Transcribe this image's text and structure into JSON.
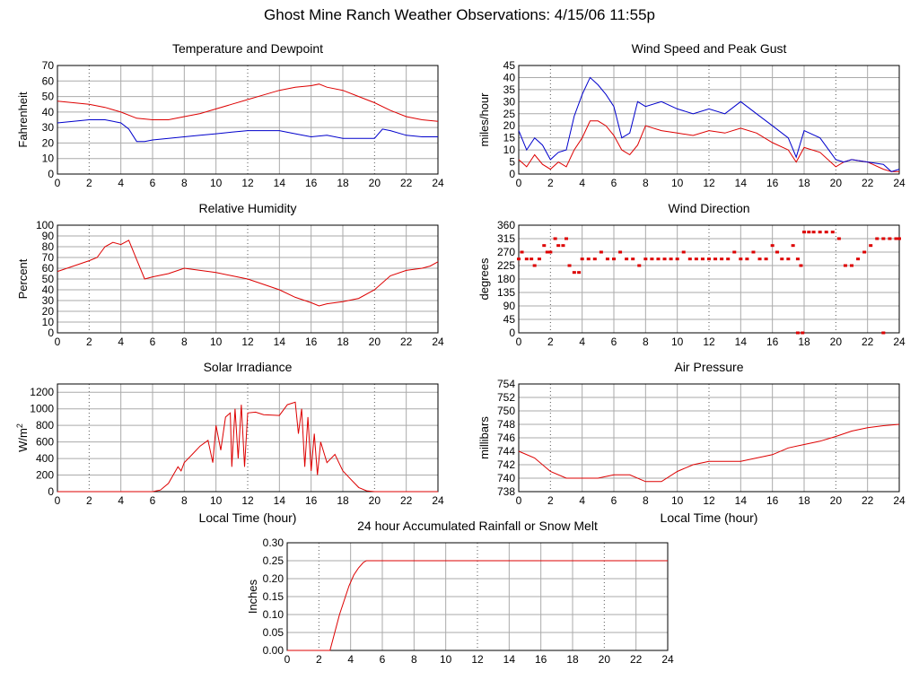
{
  "page_title": "Ghost Mine Ranch Weather Observations: 4/15/06 11:55p",
  "colors": {
    "red": "#dd0000",
    "blue": "#0000cc",
    "grid": "#aaaaaa",
    "axis": "#000000"
  },
  "chart_data": [
    {
      "id": "temperature",
      "type": "line",
      "title": "Temperature and Dewpoint",
      "ylabel": "Fahrenheit",
      "xlabel": "",
      "xlim": [
        0,
        24
      ],
      "ylim": [
        0,
        70
      ],
      "xticks": [
        0,
        2,
        4,
        6,
        8,
        10,
        12,
        14,
        16,
        18,
        20,
        22,
        24
      ],
      "yticks": [
        0,
        10,
        20,
        30,
        40,
        50,
        60,
        70
      ],
      "grid": true,
      "series": [
        {
          "color": "#dd0000",
          "x": [
            0,
            1,
            2,
            3,
            4,
            5,
            6,
            7,
            8,
            9,
            10,
            11,
            12,
            13,
            14,
            15,
            16,
            16.5,
            17,
            18,
            19,
            20,
            21,
            22,
            23,
            24
          ],
          "y": [
            47,
            46,
            45,
            43,
            40,
            36,
            35,
            35,
            37,
            39,
            42,
            45,
            48,
            51,
            54,
            56,
            57,
            58,
            56,
            54,
            50,
            46,
            41,
            37,
            35,
            34
          ]
        },
        {
          "color": "#0000cc",
          "x": [
            0,
            1,
            2,
            3,
            4,
            4.5,
            5,
            5.5,
            6,
            7,
            8,
            9,
            10,
            11,
            12,
            13,
            14,
            15,
            16,
            17,
            18,
            19,
            20,
            20.5,
            21,
            22,
            23,
            24
          ],
          "y": [
            33,
            34,
            35,
            35,
            33,
            29,
            21,
            21,
            22,
            23,
            24,
            25,
            26,
            27,
            28,
            28,
            28,
            26,
            24,
            25,
            23,
            23,
            23,
            29,
            28,
            25,
            24,
            24
          ]
        }
      ]
    },
    {
      "id": "wind_speed",
      "type": "line",
      "title": "Wind Speed and Peak Gust",
      "ylabel": "miles/hour",
      "xlabel": "",
      "xlim": [
        0,
        24
      ],
      "ylim": [
        0,
        45
      ],
      "xticks": [
        0,
        2,
        4,
        6,
        8,
        10,
        12,
        14,
        16,
        18,
        20,
        22,
        24
      ],
      "yticks": [
        0,
        5,
        10,
        15,
        20,
        25,
        30,
        35,
        40,
        45
      ],
      "grid": true,
      "series": [
        {
          "color": "#dd0000",
          "x": [
            0,
            0.5,
            1,
            1.5,
            2,
            2.5,
            3,
            3.5,
            4,
            4.5,
            5,
            5.5,
            6,
            6.5,
            7,
            7.5,
            8,
            9,
            10,
            11,
            12,
            13,
            14,
            15,
            16,
            17,
            17.5,
            18,
            19,
            20,
            20.5,
            21,
            22,
            23,
            23.5,
            24
          ],
          "y": [
            6,
            3,
            8,
            4,
            2,
            5,
            3,
            10,
            15,
            22,
            22,
            20,
            16,
            10,
            8,
            12,
            20,
            18,
            17,
            16,
            18,
            17,
            19,
            17,
            13,
            10,
            5,
            11,
            9,
            3,
            5,
            6,
            5,
            2,
            1,
            1
          ]
        },
        {
          "color": "#0000cc",
          "x": [
            0,
            0.5,
            1,
            1.5,
            2,
            2.5,
            3,
            3.5,
            4,
            4.5,
            5,
            5.5,
            6,
            6.5,
            7,
            7.5,
            8,
            9,
            10,
            11,
            12,
            13,
            14,
            15,
            16,
            17,
            17.5,
            18,
            19,
            20,
            20.5,
            21,
            22,
            23,
            23.5,
            24
          ],
          "y": [
            18,
            10,
            15,
            12,
            6,
            9,
            10,
            24,
            33,
            40,
            37,
            33,
            28,
            15,
            17,
            30,
            28,
            30,
            27,
            25,
            27,
            25,
            30,
            25,
            20,
            15,
            7,
            18,
            15,
            6,
            5,
            6,
            5,
            4,
            1,
            2
          ]
        }
      ]
    },
    {
      "id": "humidity",
      "type": "line",
      "title": "Relative Humidity",
      "ylabel": "Percent",
      "xlabel": "",
      "xlim": [
        0,
        24
      ],
      "ylim": [
        0,
        100
      ],
      "xticks": [
        0,
        2,
        4,
        6,
        8,
        10,
        12,
        14,
        16,
        18,
        20,
        22,
        24
      ],
      "yticks": [
        0,
        10,
        20,
        30,
        40,
        50,
        60,
        70,
        80,
        90,
        100
      ],
      "grid": true,
      "series": [
        {
          "color": "#dd0000",
          "x": [
            0,
            1,
            2,
            2.5,
            3,
            3.5,
            4,
            4.5,
            5,
            5.5,
            6,
            7,
            8,
            9,
            10,
            11,
            12,
            13,
            14,
            15,
            16,
            16.5,
            17,
            18,
            19,
            20,
            21,
            22,
            23,
            23.5,
            24
          ],
          "y": [
            57,
            62,
            67,
            70,
            80,
            84,
            82,
            86,
            68,
            50,
            52,
            55,
            60,
            58,
            56,
            53,
            50,
            45,
            40,
            33,
            28,
            25,
            27,
            29,
            32,
            40,
            53,
            58,
            60,
            62,
            66
          ]
        }
      ]
    },
    {
      "id": "wind_direction",
      "type": "scatter",
      "title": "Wind Direction",
      "ylabel": "degrees",
      "xlabel": "",
      "xlim": [
        0,
        24
      ],
      "ylim": [
        0,
        360
      ],
      "xticks": [
        0,
        2,
        4,
        6,
        8,
        10,
        12,
        14,
        16,
        18,
        20,
        22,
        24
      ],
      "yticks": [
        0,
        45,
        90,
        135,
        180,
        225,
        270,
        315,
        360
      ],
      "grid": true,
      "series": [
        {
          "color": "#dd0000",
          "x": [
            0,
            0.2,
            0.5,
            0.8,
            1,
            1.3,
            1.6,
            1.8,
            2,
            2.3,
            2.5,
            2.8,
            3,
            3.2,
            3.5,
            3.8,
            4,
            4.4,
            4.8,
            5.2,
            5.6,
            6,
            6.4,
            6.8,
            7.2,
            7.6,
            8,
            8.4,
            8.8,
            9.2,
            9.6,
            10,
            10.4,
            10.8,
            11.2,
            11.6,
            12,
            12.4,
            12.8,
            13.2,
            13.6,
            14,
            14.4,
            14.8,
            15.2,
            15.6,
            16,
            16.3,
            16.6,
            17,
            17.3,
            17.6,
            17.8,
            18,
            18.3,
            18.6,
            19,
            19.4,
            19.8,
            20.2,
            20.6,
            21,
            21.4,
            21.8,
            22.2,
            22.6,
            23,
            23.4,
            23.8,
            24,
            17.6,
            17.9,
            23
          ],
          "y": [
            247,
            270,
            247,
            247,
            225,
            247,
            292,
            270,
            270,
            315,
            292,
            292,
            315,
            225,
            202,
            202,
            247,
            247,
            247,
            270,
            247,
            247,
            270,
            247,
            247,
            225,
            247,
            247,
            247,
            247,
            247,
            247,
            270,
            247,
            247,
            247,
            247,
            247,
            247,
            247,
            270,
            247,
            247,
            270,
            247,
            247,
            292,
            270,
            247,
            247,
            292,
            247,
            225,
            337,
            337,
            337,
            337,
            337,
            337,
            315,
            225,
            225,
            247,
            270,
            292,
            315,
            315,
            315,
            315,
            315,
            0,
            0,
            0
          ]
        }
      ]
    },
    {
      "id": "solar",
      "type": "line",
      "title": "Solar Irradiance",
      "ylabel": "W/m2",
      "xlabel": "Local Time (hour)",
      "xlim": [
        0,
        24
      ],
      "ylim": [
        0,
        1300
      ],
      "xticks": [
        0,
        2,
        4,
        6,
        8,
        10,
        12,
        14,
        16,
        18,
        20,
        22,
        24
      ],
      "yticks": [
        0,
        200,
        400,
        600,
        800,
        1000,
        1200
      ],
      "grid": true,
      "series": [
        {
          "color": "#dd0000",
          "x": [
            0,
            6,
            6.5,
            7,
            7.3,
            7.6,
            7.8,
            8,
            8.5,
            9,
            9.5,
            9.8,
            10,
            10.3,
            10.6,
            10.9,
            11,
            11.2,
            11.4,
            11.6,
            11.8,
            12,
            12.5,
            13,
            14,
            14.5,
            15,
            15.2,
            15.4,
            15.6,
            15.8,
            16,
            16.2,
            16.4,
            16.6,
            17,
            17.5,
            18,
            18.5,
            19,
            19.5,
            20,
            24
          ],
          "y": [
            0,
            0,
            20,
            100,
            200,
            300,
            250,
            350,
            450,
            550,
            620,
            350,
            800,
            500,
            900,
            950,
            300,
            1000,
            400,
            1050,
            300,
            950,
            960,
            930,
            920,
            1050,
            1080,
            700,
            1000,
            300,
            900,
            250,
            700,
            200,
            600,
            350,
            450,
            250,
            150,
            50,
            10,
            0,
            0
          ]
        }
      ]
    },
    {
      "id": "pressure",
      "type": "line",
      "title": "Air Pressure",
      "ylabel": "millibars",
      "xlabel": "Local Time (hour)",
      "xlim": [
        0,
        24
      ],
      "ylim": [
        738,
        754
      ],
      "xticks": [
        0,
        2,
        4,
        6,
        8,
        10,
        12,
        14,
        16,
        18,
        20,
        22,
        24
      ],
      "yticks": [
        738,
        740,
        742,
        744,
        746,
        748,
        750,
        752,
        754
      ],
      "grid": true,
      "series": [
        {
          "color": "#dd0000",
          "x": [
            0,
            1,
            2,
            3,
            4,
            5,
            6,
            7,
            8,
            9,
            10,
            11,
            12,
            13,
            14,
            15,
            16,
            17,
            18,
            19,
            20,
            21,
            22,
            23,
            24
          ],
          "y": [
            744,
            743,
            741,
            740,
            740,
            740,
            740.5,
            740.5,
            739.5,
            739.5,
            741,
            742,
            742.5,
            742.5,
            742.5,
            743,
            743.5,
            744.5,
            745,
            745.5,
            746.2,
            747,
            747.5,
            747.8,
            748
          ]
        }
      ]
    },
    {
      "id": "rainfall",
      "type": "line",
      "title": "24 hour Accumulated Rainfall or Snow Melt",
      "ylabel": "Inches",
      "xlabel": "",
      "xlim": [
        0,
        24
      ],
      "ylim": [
        0,
        0.3
      ],
      "xticks": [
        0,
        2,
        4,
        6,
        8,
        10,
        12,
        14,
        16,
        18,
        20,
        22,
        24
      ],
      "yticks": [
        0,
        0.05,
        0.1,
        0.15,
        0.2,
        0.25,
        0.3
      ],
      "grid": true,
      "series": [
        {
          "color": "#dd0000",
          "x": [
            0,
            2.7,
            3,
            3.3,
            3.6,
            3.9,
            4.2,
            4.5,
            4.8,
            5,
            24
          ],
          "y": [
            0,
            0,
            0.05,
            0.1,
            0.14,
            0.18,
            0.21,
            0.23,
            0.245,
            0.25,
            0.25
          ]
        }
      ]
    }
  ]
}
